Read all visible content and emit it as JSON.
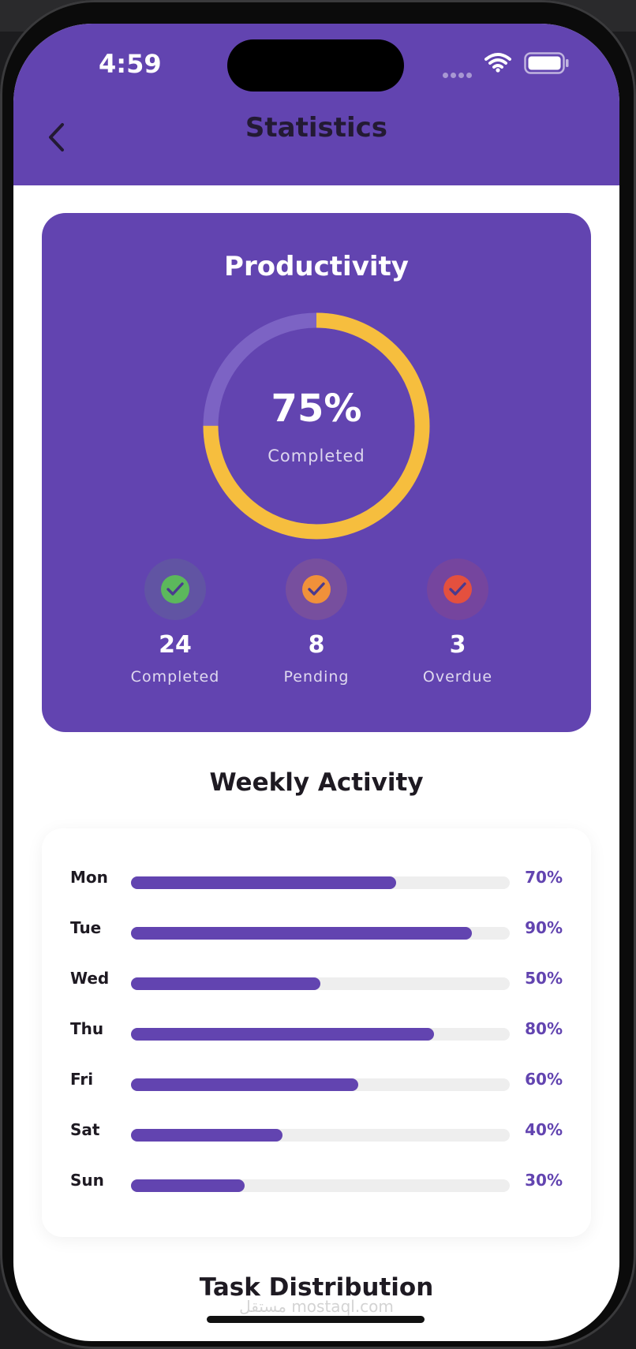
{
  "status_bar": {
    "time": "4:59"
  },
  "header": {
    "title": "Statistics"
  },
  "productivity": {
    "title": "Productivity",
    "percent": 75,
    "percent_label": "75%",
    "sub_label": "Completed",
    "stats": [
      {
        "count": "24",
        "label": "Completed",
        "color": "#5cb85c",
        "icon": "check-icon"
      },
      {
        "count": "8",
        "label": "Pending",
        "color": "#f0913a",
        "icon": "check-icon"
      },
      {
        "count": "3",
        "label": "Overdue",
        "color": "#e4503e",
        "icon": "check-icon"
      }
    ]
  },
  "weekly": {
    "title": "Weekly Activity",
    "days": [
      {
        "day": "Mon",
        "value": 70,
        "label": "70%"
      },
      {
        "day": "Tue",
        "value": 90,
        "label": "90%"
      },
      {
        "day": "Wed",
        "value": 50,
        "label": "50%"
      },
      {
        "day": "Thu",
        "value": 80,
        "label": "80%"
      },
      {
        "day": "Fri",
        "value": 60,
        "label": "60%"
      },
      {
        "day": "Sat",
        "value": 40,
        "label": "40%"
      },
      {
        "day": "Sun",
        "value": 30,
        "label": "30%"
      }
    ]
  },
  "distribution": {
    "title": "Task Distribution"
  },
  "watermark": "مستقل mostaql.com",
  "colors": {
    "primary": "#6244b0",
    "ring_progress": "#f6be3e",
    "ring_track": "#7c63c4"
  }
}
